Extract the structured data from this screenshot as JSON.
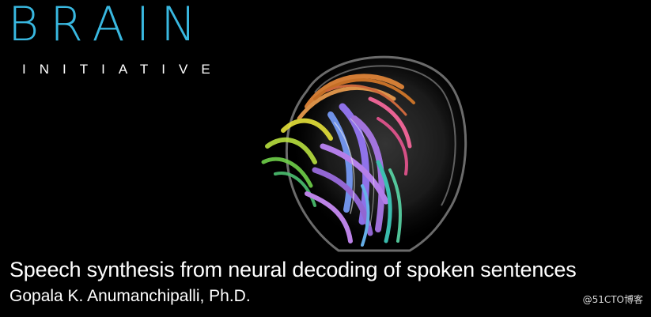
{
  "logo": {
    "title": "BRAIN",
    "subtitle": "INITIATIVE",
    "color": "#39b8e0"
  },
  "image": {
    "subject": "brain-tractography-icon"
  },
  "talk": {
    "title": "Speech synthesis from neural decoding of spoken sentences",
    "author": "Gopala K. Anumanchipalli, Ph.D."
  },
  "watermark": {
    "text": "@51CTO博客"
  }
}
